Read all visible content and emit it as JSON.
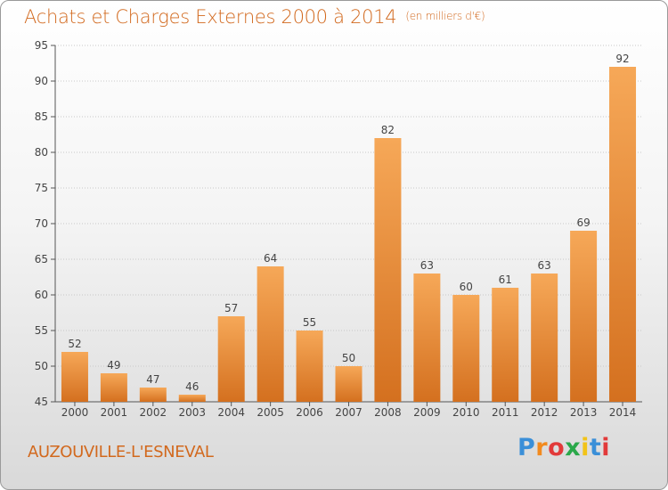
{
  "title": "Achats et Charges Externes 2000 à 2014",
  "unit": "(en milliers d'€)",
  "commune": "AUZOUVILLE-L'ESNEVAL",
  "logo": {
    "letters": [
      "P",
      "r",
      "o",
      "x",
      "i",
      "t",
      "i"
    ],
    "colors": [
      "#3a8fd8",
      "#f28a1e",
      "#e23a3a",
      "#2aa84a",
      "#f2c318",
      "#3a8fd8",
      "#e23a3a"
    ]
  },
  "colors": {
    "title": "#d2691e",
    "bar_light": "#f6a858",
    "bar_dark": "#d4701f",
    "axis": "#555555",
    "grid": "#c8c8c8"
  },
  "chart_data": {
    "type": "bar",
    "categories": [
      "2000",
      "2001",
      "2002",
      "2003",
      "2004",
      "2005",
      "2006",
      "2007",
      "2008",
      "2009",
      "2010",
      "2011",
      "2012",
      "2013",
      "2014"
    ],
    "values": [
      52,
      49,
      47,
      46,
      57,
      64,
      55,
      50,
      82,
      63,
      60,
      61,
      63,
      69,
      92
    ],
    "ylim": [
      45,
      95
    ],
    "yticks": [
      45,
      50,
      55,
      60,
      65,
      70,
      75,
      80,
      85,
      90,
      95
    ],
    "grid": true
  }
}
